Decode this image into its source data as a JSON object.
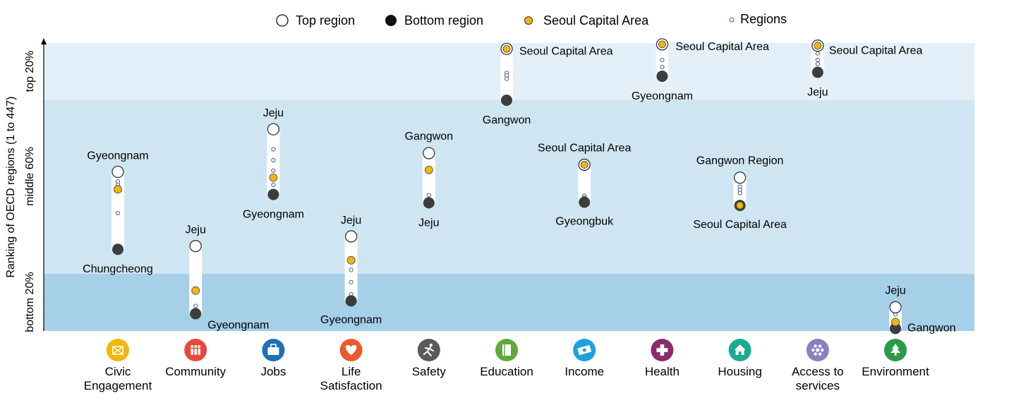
{
  "legend": {
    "top_region": "Top region",
    "bottom_region": "Bottom region",
    "capital": "Seoul Capital Area",
    "regions": "Regions"
  },
  "yaxis": {
    "title": "Ranking of OECD regions (1 to 447)",
    "bands": [
      "top 20%",
      "middle 60%",
      "bottom 20%"
    ]
  },
  "colors": {
    "band_top": "#e3f0f9",
    "band_middle": "#cfe6f2",
    "band_bottom": "#a6cfe8",
    "capital": "#f2b50f",
    "bottom_marker": "#3d3d3d",
    "region_dot": "#44618e",
    "bar": "#ffffff"
  },
  "chart_data": {
    "type": "dot-range",
    "ylabel": "Ranking of OECD regions (1 to 447)",
    "y_scale": "OECD regional rank, 1 = best (top) to 447 = worst (bottom)",
    "ylim": [
      447,
      1
    ],
    "bands": [
      {
        "name": "top 20%",
        "from": 1,
        "to": 89
      },
      {
        "name": "middle 60%",
        "from": 89,
        "to": 358
      },
      {
        "name": "bottom 20%",
        "from": 358,
        "to": 447
      }
    ],
    "legend": [
      "Top region",
      "Bottom region",
      "Seoul Capital Area",
      "Regions"
    ],
    "legend_position": "top",
    "categories": [
      {
        "name": "Civic Engagement",
        "label_lines": [
          "Civic",
          "Engagement"
        ],
        "icon": "civic-engagement-icon",
        "color": "#f2b70c",
        "top": {
          "label": "Gyeongnam",
          "rank": 200
        },
        "bottom": {
          "label": "Chungcheong",
          "rank": 320
        },
        "capital_rank": 227,
        "regions": [
          215,
          220,
          229,
          264
        ]
      },
      {
        "name": "Community",
        "label_lines": [
          "Community"
        ],
        "icon": "community-icon",
        "color": "#e5493c",
        "top": {
          "label": "Jeju",
          "rank": 315
        },
        "bottom": {
          "label": "Gyeongnam",
          "rank": 420
        },
        "capital_rank": 384,
        "regions": [
          408
        ]
      },
      {
        "name": "Jobs",
        "label_lines": [
          "Jobs"
        ],
        "icon": "jobs-icon",
        "color": "#1e6fb4",
        "top": {
          "label": "Jeju",
          "rank": 134
        },
        "bottom": {
          "label": "Gyeongnam",
          "rank": 235
        },
        "capital_rank": 209,
        "regions": [
          165,
          182,
          198,
          220
        ]
      },
      {
        "name": "Life Satisfaction",
        "label_lines": [
          "Life",
          "Satisfaction"
        ],
        "icon": "life-satisfaction-icon",
        "color": "#ea5a2d",
        "top": {
          "label": "Jeju",
          "rank": 300
        },
        "bottom": {
          "label": "Gyeongnam",
          "rank": 400
        },
        "capital_rank": 337,
        "regions": [
          352,
          371,
          390
        ]
      },
      {
        "name": "Safety",
        "label_lines": [
          "Safety"
        ],
        "icon": "safety-icon",
        "color": "#5a5a5a",
        "top": {
          "label": "Gangwon",
          "rank": 171
        },
        "bottom": {
          "label": "Jeju",
          "rank": 248
        },
        "capital_rank": 197,
        "regions": [
          236
        ]
      },
      {
        "name": "Education",
        "label_lines": [
          "Education"
        ],
        "icon": "education-icon",
        "color": "#63a83e",
        "top": {
          "label": "Seoul Capital Area",
          "rank": 10
        },
        "bottom": {
          "label": "Gangwon",
          "rank": 89
        },
        "capital_rank": 10,
        "regions": [
          47,
          51,
          56
        ]
      },
      {
        "name": "Income",
        "label_lines": [
          "Income"
        ],
        "icon": "income-icon",
        "color": "#1da1dc",
        "top": {
          "label": "Seoul Capital Area",
          "rank": 189
        },
        "bottom": {
          "label": "Gyeongbuk",
          "rank": 247
        },
        "capital_rank": 189,
        "regions": [
          237,
          240
        ]
      },
      {
        "name": "Health",
        "label_lines": [
          "Health"
        ],
        "icon": "health-icon",
        "color": "#8b2a6e",
        "top": {
          "label": "Seoul Capital Area",
          "rank": 3
        },
        "bottom": {
          "label": "Gyeongnam",
          "rank": 52
        },
        "capital_rank": 3,
        "regions": [
          27,
          38
        ]
      },
      {
        "name": "Housing",
        "label_lines": [
          "Housing"
        ],
        "icon": "housing-icon",
        "color": "#1bab8f",
        "top": {
          "label": "Gangwon Region",
          "rank": 209
        },
        "bottom": {
          "label": "Seoul Capital Area",
          "rank": 252
        },
        "capital_rank": 252,
        "regions": [
          223,
          228,
          233
        ]
      },
      {
        "name": "Access to services",
        "label_lines": [
          "Access to",
          "services"
        ],
        "icon": "access-to-services-icon",
        "color": "#8d7fbd",
        "top": {
          "label": "Seoul Capital Area",
          "rank": 5
        },
        "bottom": {
          "label": "Jeju",
          "rank": 46
        },
        "capital_rank": 5,
        "regions": [
          17,
          27,
          33
        ]
      },
      {
        "name": "Environment",
        "label_lines": [
          "Environment"
        ],
        "icon": "environment-icon",
        "color": "#2b9a48",
        "top": {
          "label": "Jeju",
          "rank": 410
        },
        "bottom": {
          "label": "Gangwon",
          "rank": 443
        },
        "capital_rank": 433,
        "regions": [
          421
        ]
      }
    ]
  }
}
